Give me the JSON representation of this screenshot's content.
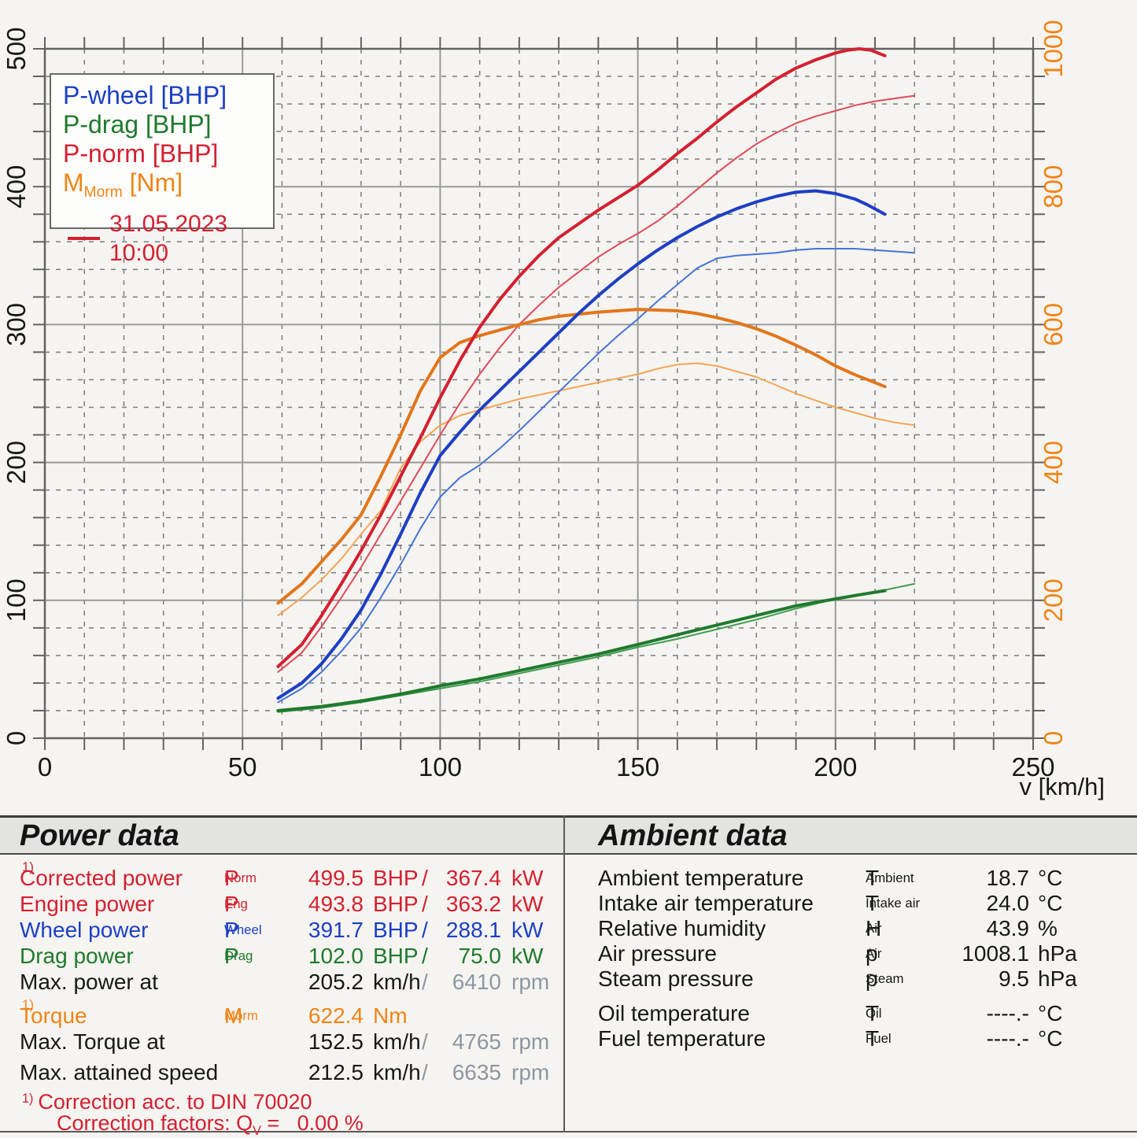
{
  "palette": {
    "red": "#d42031",
    "blue": "#1d3fc4",
    "green": "#1f7a2d",
    "orange": "#f08418",
    "red_thin": "#e0495b",
    "blue_thin": "#4673d6",
    "green_thin": "#419c52",
    "orange_thin": "#f3a558",
    "gray": "#8d97a3",
    "ink": "#18181a",
    "band": "#e3e3e1",
    "page": "#f5f4f0",
    "grid_major": "#9a9a9a",
    "grid_minor": "#7c7c7c",
    "frame": "#636363",
    "legend_bg": "#fdfdfb"
  },
  "chart_data": {
    "type": "line",
    "xlabel": "v [km/h]",
    "x_range": [
      0,
      250
    ],
    "x_major": 50,
    "x_minor": 10,
    "x_ticks": [
      0,
      50,
      100,
      150,
      200,
      250
    ],
    "left_axis": {
      "range": [
        0,
        500
      ],
      "major": 100,
      "minor": 20,
      "ticks": [
        0,
        100,
        200,
        300,
        400,
        500
      ],
      "color": "#18181a"
    },
    "right_axis": {
      "range": [
        0,
        1000
      ],
      "major": 200,
      "minor": 40,
      "ticks": [
        0,
        200,
        400,
        600,
        800,
        1000
      ],
      "color": "#f08418"
    },
    "grid": "major solid, minor dashed",
    "legend": {
      "entries": [
        {
          "label": "P-wheel [BHP]"
        },
        {
          "label": "P-drag [BHP]"
        },
        {
          "label": "P-norm [BHP]"
        },
        {
          "pre": "M",
          "sub": "Morm",
          "post": " [Nm]"
        }
      ],
      "run": {
        "date": "31.05.2023 10:00"
      }
    },
    "series": [
      {
        "id": "p-drag-prev",
        "name": "P-drag previous run [BHP]",
        "axis": "left",
        "color": "#419c52",
        "width": 2,
        "x": [
          59,
          70,
          80,
          90,
          100,
          110,
          120,
          130,
          140,
          150,
          160,
          170,
          180,
          190,
          200,
          210,
          220
        ],
        "y": [
          19,
          22,
          26,
          31,
          36,
          41,
          47,
          53,
          59,
          66,
          72,
          79,
          86,
          94,
          101,
          106,
          112
        ]
      },
      {
        "id": "torque-prev",
        "name": "Torque previous run [Nm]",
        "axis": "right",
        "color": "#f3a558",
        "width": 2,
        "x": [
          59,
          65,
          70,
          75,
          80,
          85,
          90,
          95,
          100,
          105,
          110,
          115,
          120,
          125,
          130,
          135,
          140,
          145,
          150,
          155,
          160,
          165,
          170,
          175,
          180,
          185,
          190,
          195,
          200,
          205,
          210,
          215,
          220
        ],
        "y": [
          178,
          204,
          230,
          260,
          296,
          330,
          392,
          430,
          454,
          468,
          476,
          484,
          492,
          498,
          504,
          510,
          516,
          522,
          528,
          536,
          542,
          544,
          540,
          532,
          524,
          512,
          500,
          490,
          480,
          472,
          464,
          458,
          454
        ]
      },
      {
        "id": "p-wheel-prev",
        "name": "P-wheel previous run [BHP]",
        "axis": "left",
        "color": "#4673d6",
        "width": 2,
        "x": [
          59,
          65,
          70,
          75,
          80,
          85,
          90,
          95,
          100,
          105,
          110,
          115,
          120,
          125,
          130,
          135,
          140,
          145,
          150,
          155,
          160,
          165,
          170,
          175,
          180,
          185,
          190,
          195,
          200,
          205,
          210,
          215,
          220
        ],
        "y": [
          26,
          36,
          48,
          63,
          80,
          102,
          126,
          152,
          175,
          189,
          198,
          210,
          223,
          237,
          251,
          265,
          279,
          292,
          304,
          317,
          329,
          341,
          348,
          350,
          351,
          352,
          354,
          355,
          355,
          355,
          354,
          353,
          352
        ]
      },
      {
        "id": "p-norm-prev",
        "name": "P-norm previous run [BHP]",
        "axis": "left",
        "color": "#e0495b",
        "width": 2,
        "x": [
          59,
          65,
          70,
          75,
          80,
          85,
          90,
          95,
          100,
          105,
          110,
          115,
          120,
          125,
          130,
          135,
          140,
          145,
          150,
          155,
          160,
          165,
          170,
          175,
          180,
          185,
          190,
          195,
          200,
          205,
          210,
          215,
          220
        ],
        "y": [
          48,
          62,
          81,
          102,
          124,
          148,
          172,
          196,
          220,
          243,
          264,
          283,
          300,
          314,
          327,
          338,
          349,
          358,
          366,
          375,
          386,
          398,
          410,
          421,
          431,
          439,
          446,
          451,
          455,
          459,
          462,
          464,
          466
        ]
      },
      {
        "id": "p-drag",
        "name": "P-drag [BHP]",
        "axis": "left",
        "color": "#1f7a2d",
        "width": 4,
        "x": [
          59,
          70,
          80,
          90,
          100,
          110,
          120,
          130,
          140,
          150,
          160,
          170,
          180,
          190,
          200,
          206,
          212.5
        ],
        "y": [
          20,
          23,
          27,
          32,
          38,
          43,
          49,
          55,
          61,
          68,
          75,
          82,
          89,
          96,
          101,
          104,
          107
        ]
      },
      {
        "id": "torque",
        "name": "M Morm [Nm]",
        "axis": "right",
        "color": "#e2761b",
        "width": 4,
        "x": [
          59,
          65,
          70,
          75,
          80,
          85,
          90,
          95,
          100,
          105,
          110,
          115,
          120,
          125,
          130,
          135,
          140,
          145,
          150,
          155,
          160,
          165,
          170,
          175,
          180,
          185,
          190,
          195,
          200,
          205,
          209,
          212.5
        ],
        "y": [
          196,
          224,
          256,
          288,
          324,
          380,
          440,
          504,
          552,
          574,
          584,
          592,
          600,
          607,
          612,
          615,
          618,
          620,
          622,
          621,
          620,
          616,
          610,
          603,
          594,
          583,
          570,
          556,
          540,
          527,
          518,
          510
        ]
      },
      {
        "id": "p-wheel",
        "name": "P-wheel [BHP]",
        "axis": "left",
        "color": "#1d3fc4",
        "width": 4,
        "x": [
          59,
          65,
          70,
          75,
          80,
          85,
          90,
          95,
          100,
          105,
          110,
          115,
          120,
          125,
          130,
          135,
          140,
          145,
          150,
          155,
          160,
          165,
          170,
          175,
          180,
          185,
          190,
          195,
          200,
          205,
          208,
          212.5
        ],
        "y": [
          29,
          40,
          54,
          72,
          93,
          119,
          148,
          178,
          205,
          222,
          238,
          252,
          266,
          280,
          294,
          308,
          321,
          333,
          344,
          354,
          363,
          371,
          378,
          384,
          389,
          393,
          396,
          397,
          395,
          391,
          387,
          380
        ]
      },
      {
        "id": "p-norm",
        "name": "P-norm [BHP]",
        "axis": "left",
        "color": "#d42031",
        "width": 4,
        "x": [
          59,
          65,
          70,
          75,
          80,
          85,
          90,
          95,
          100,
          105,
          110,
          115,
          120,
          125,
          130,
          135,
          140,
          145,
          150,
          155,
          160,
          165,
          170,
          175,
          180,
          185,
          190,
          195,
          200,
          203,
          206,
          209,
          212.5
        ],
        "y": [
          52,
          68,
          89,
          112,
          136,
          162,
          190,
          218,
          247,
          274,
          298,
          318,
          335,
          350,
          363,
          373,
          383,
          392,
          401,
          412,
          424,
          435,
          447,
          458,
          468,
          478,
          486,
          492,
          497,
          499,
          500,
          499,
          495
        ]
      }
    ]
  },
  "power": {
    "title": "Power data",
    "rows": [
      {
        "label": "Corrected power",
        "sup": "1)",
        "sym_pre": "P",
        "sym_sub": "Norm",
        "v1": "499.5",
        "u1": "BHP",
        "slash": "/",
        "v2": "367.4",
        "u2": "kW"
      },
      {
        "label": "Engine power",
        "sym_pre": "P",
        "sym_sub": "Eng",
        "v1": "493.8",
        "u1": "BHP",
        "slash": "/",
        "v2": "363.2",
        "u2": "kW"
      },
      {
        "label": "Wheel power",
        "sym_pre": "P",
        "sym_sub": "Wheel",
        "v1": "391.7",
        "u1": "BHP",
        "slash": "/",
        "v2": "288.1",
        "u2": "kW"
      },
      {
        "label": "Drag power",
        "sym_pre": "P",
        "sym_sub": "Drag",
        "v1": "102.0",
        "u1": "BHP",
        "slash": "/",
        "v2": "75.0",
        "u2": "kW"
      },
      {
        "label": "Max. power at",
        "v1": "205.2",
        "u1": "km/h",
        "slash": "/",
        "v2": "6410",
        "u2": "rpm"
      },
      {
        "label": "Torque",
        "sup": "1)",
        "sym_pre": "M",
        "sym_sub": "Morm",
        "v1": "622.4",
        "u1": "Nm"
      },
      {
        "label": "Max. Torque at",
        "v1": "152.5",
        "u1": "km/h",
        "slash": "/",
        "v2": "4765",
        "u2": "rpm"
      },
      {
        "label": "Max. attained speed",
        "v1": "212.5",
        "u1": "km/h",
        "slash": "/",
        "v2": "6635",
        "u2": "rpm"
      }
    ],
    "footnote1_sup": "1)",
    "footnote1": "Correction acc. to DIN 70020",
    "footnote2_pre": "Correction factors: Q",
    "footnote2_sub": "V",
    "footnote2_post": " =   0.00 %"
  },
  "ambient": {
    "title": "Ambient data",
    "rows": [
      {
        "label": "Ambient temperature",
        "sym_pre": "T",
        "sym_sub": "Ambient",
        "v": "18.7",
        "u": "°C"
      },
      {
        "label": "Intake air temperature",
        "sym_pre": "T",
        "sym_sub": "Intake air",
        "v": "24.0",
        "u": "°C"
      },
      {
        "label": "Relative humidity",
        "sym_pre": "H",
        "sym_sub": "Air",
        "v": "43.9",
        "u": "%"
      },
      {
        "label": "Air pressure",
        "sym_pre": "p",
        "sym_sub": "Air",
        "v": "1008.1",
        "u": "hPa"
      },
      {
        "label": "Steam pressure",
        "sym_pre": "p",
        "sym_sub": "Steam",
        "v": "9.5",
        "u": "hPa"
      },
      {
        "label": "Oil temperature",
        "sym_pre": "T",
        "sym_sub": "Oil",
        "v": "----.-",
        "u": "°C"
      },
      {
        "label": "Fuel temperature",
        "sym_pre": "T",
        "sym_sub": "Fuel",
        "v": "----.-",
        "u": "°C"
      }
    ]
  }
}
